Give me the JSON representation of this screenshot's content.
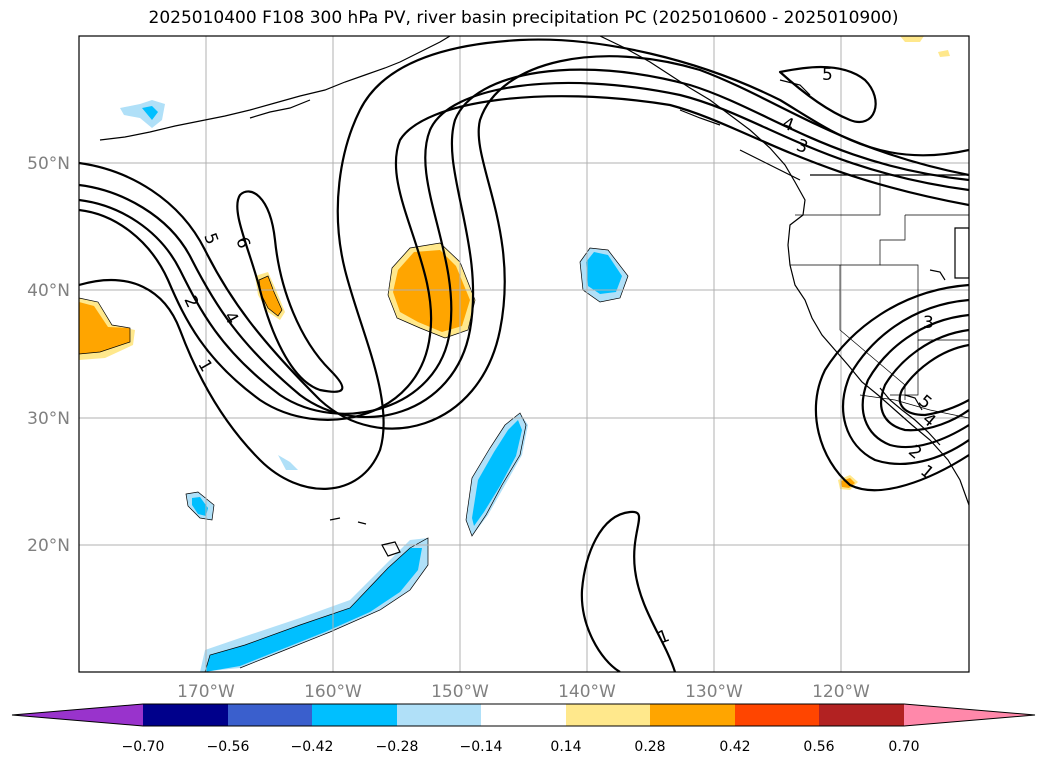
{
  "title": "2025010400 F108 300 hPa PV, river basin precipitation PC (2025010600 - 2025010900)",
  "map": {
    "lat_labels": [
      "50°N",
      "40°N",
      "30°N",
      "20°N"
    ],
    "lon_labels": [
      "170°W",
      "160°W",
      "150°W",
      "140°W",
      "130°W",
      "120°W"
    ],
    "contour_labels": [
      "5",
      "6",
      "2",
      "4",
      "1",
      "5",
      "4",
      "3",
      "3",
      "5",
      "4",
      "2",
      "1",
      "1"
    ]
  },
  "colorbar": {
    "ticks": [
      "−0.70",
      "−0.56",
      "−0.42",
      "−0.28",
      "−0.14",
      "0.14",
      "0.28",
      "0.42",
      "0.56",
      "0.70"
    ],
    "colors": [
      "#9933cc",
      "#00008b",
      "#3a5fcd",
      "#00bfff",
      "#b0e0f8",
      "#ffffff",
      "#ffe88c",
      "#ffa500",
      "#ff4500",
      "#b22222",
      "#ff88aa"
    ]
  }
}
